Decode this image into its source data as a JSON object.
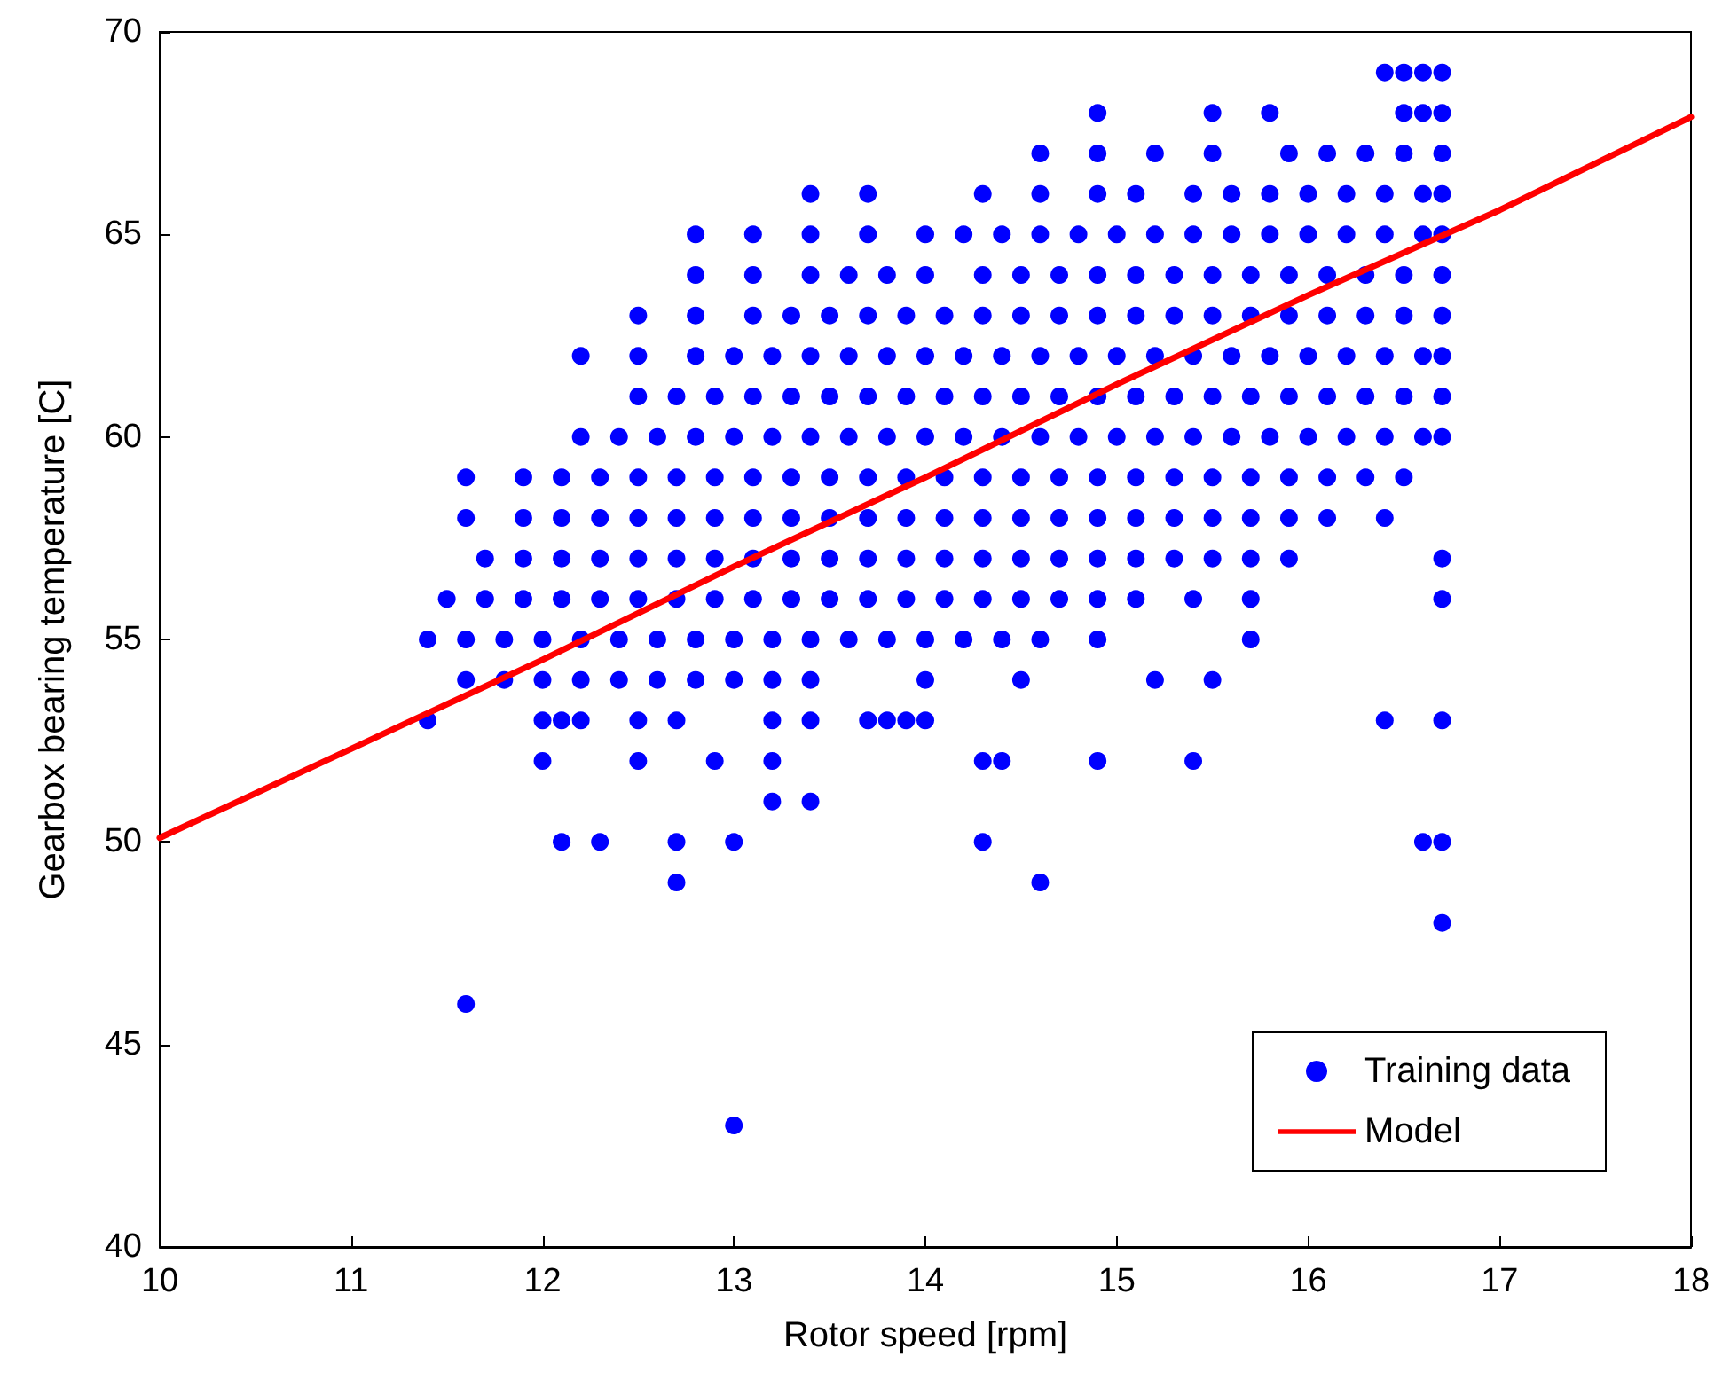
{
  "chart_data": {
    "type": "scatter",
    "xlabel": "Rotor speed [rpm]",
    "ylabel": "Gearbox bearing temperature [C]",
    "xlim": [
      10,
      18
    ],
    "xticks": [
      10,
      11,
      12,
      13,
      14,
      15,
      16,
      17,
      18
    ],
    "ylim": [
      40,
      70
    ],
    "yticks": [
      40,
      45,
      50,
      55,
      60,
      65,
      70
    ],
    "grid": false,
    "legend": "bottom right",
    "marker": "circle",
    "series": [
      {
        "name": "Training data",
        "color": "#0000ff",
        "x": [
          16.4,
          16.5,
          16.6,
          16.7,
          14.9,
          15.5,
          15.8,
          16.5,
          16.6,
          16.7,
          14.6,
          14.9,
          15.2,
          15.5,
          15.9,
          16.1,
          16.3,
          16.5,
          16.7,
          13.4,
          13.7,
          14.3,
          14.6,
          14.9,
          15.1,
          15.4,
          15.6,
          15.8,
          16.0,
          16.2,
          16.4,
          16.6,
          16.7,
          12.8,
          13.1,
          13.4,
          13.7,
          14.0,
          14.2,
          14.4,
          14.6,
          14.8,
          15.0,
          15.2,
          15.4,
          15.6,
          15.8,
          16.0,
          16.2,
          16.4,
          16.6,
          16.7,
          12.8,
          13.1,
          13.4,
          13.6,
          13.8,
          14.0,
          14.3,
          14.5,
          14.7,
          14.9,
          15.1,
          15.3,
          15.5,
          15.7,
          15.9,
          16.1,
          16.3,
          16.5,
          16.7,
          12.5,
          12.8,
          13.1,
          13.3,
          13.5,
          13.7,
          13.9,
          14.1,
          14.3,
          14.5,
          14.7,
          14.9,
          15.1,
          15.3,
          15.5,
          15.7,
          15.9,
          16.1,
          16.3,
          16.5,
          16.7,
          12.2,
          12.5,
          12.8,
          13.0,
          13.2,
          13.4,
          13.6,
          13.8,
          14.0,
          14.2,
          14.4,
          14.6,
          14.8,
          15.0,
          15.2,
          15.4,
          15.6,
          15.8,
          16.0,
          16.2,
          16.4,
          16.6,
          16.7,
          12.5,
          12.7,
          12.9,
          13.1,
          13.3,
          13.5,
          13.7,
          13.9,
          14.1,
          14.3,
          14.5,
          14.7,
          14.9,
          15.1,
          15.3,
          15.5,
          15.7,
          15.9,
          16.1,
          16.3,
          16.5,
          16.7,
          12.2,
          12.4,
          12.6,
          12.8,
          13.0,
          13.2,
          13.4,
          13.6,
          13.8,
          14.0,
          14.2,
          14.4,
          14.6,
          14.8,
          15.0,
          15.2,
          15.4,
          15.6,
          15.8,
          16.0,
          16.2,
          16.4,
          16.6,
          16.7,
          11.6,
          11.9,
          12.1,
          12.3,
          12.5,
          12.7,
          12.9,
          13.1,
          13.3,
          13.5,
          13.7,
          13.9,
          14.1,
          14.3,
          14.5,
          14.7,
          14.9,
          15.1,
          15.3,
          15.5,
          15.7,
          15.9,
          16.1,
          16.3,
          16.5,
          11.6,
          11.9,
          12.1,
          12.3,
          12.5,
          12.7,
          12.9,
          13.1,
          13.3,
          13.5,
          13.7,
          13.9,
          14.1,
          14.3,
          14.5,
          14.7,
          14.9,
          15.1,
          15.3,
          15.5,
          15.7,
          15.9,
          16.1,
          16.4,
          11.7,
          11.9,
          12.1,
          12.3,
          12.5,
          12.7,
          12.9,
          13.1,
          13.3,
          13.5,
          13.7,
          13.9,
          14.1,
          14.3,
          14.5,
          14.7,
          14.9,
          15.1,
          15.3,
          15.5,
          15.7,
          15.9,
          16.7,
          11.5,
          11.7,
          11.9,
          12.1,
          12.3,
          12.5,
          12.7,
          12.9,
          13.1,
          13.3,
          13.5,
          13.7,
          13.9,
          14.1,
          14.3,
          14.5,
          14.7,
          14.9,
          15.1,
          15.4,
          15.7,
          16.7,
          11.4,
          11.6,
          11.8,
          12.0,
          12.2,
          12.4,
          12.6,
          12.8,
          13.0,
          13.2,
          13.4,
          13.6,
          13.8,
          14.0,
          14.2,
          14.4,
          14.6,
          14.9,
          15.7,
          11.6,
          11.8,
          12.0,
          12.2,
          12.4,
          12.6,
          12.8,
          13.0,
          13.2,
          13.4,
          14.0,
          14.5,
          15.2,
          15.5,
          11.4,
          12.0,
          12.1,
          12.2,
          12.5,
          12.7,
          13.2,
          13.4,
          13.7,
          13.8,
          13.9,
          14.0,
          16.4,
          16.7,
          12.0,
          12.5,
          12.9,
          13.2,
          14.3,
          14.4,
          14.9,
          15.4,
          13.2,
          13.4,
          12.1,
          12.3,
          12.7,
          13.0,
          14.3,
          16.6,
          16.7,
          12.7,
          14.6,
          16.7,
          11.6,
          13.0
        ],
        "values": [
          69,
          69,
          69,
          69,
          68,
          68,
          68,
          68,
          68,
          68,
          67,
          67,
          67,
          67,
          67,
          67,
          67,
          67,
          67,
          66,
          66,
          66,
          66,
          66,
          66,
          66,
          66,
          66,
          66,
          66,
          66,
          66,
          66,
          65,
          65,
          65,
          65,
          65,
          65,
          65,
          65,
          65,
          65,
          65,
          65,
          65,
          65,
          65,
          65,
          65,
          65,
          65,
          64,
          64,
          64,
          64,
          64,
          64,
          64,
          64,
          64,
          64,
          64,
          64,
          64,
          64,
          64,
          64,
          64,
          64,
          64,
          63,
          63,
          63,
          63,
          63,
          63,
          63,
          63,
          63,
          63,
          63,
          63,
          63,
          63,
          63,
          63,
          63,
          63,
          63,
          63,
          63,
          62,
          62,
          62,
          62,
          62,
          62,
          62,
          62,
          62,
          62,
          62,
          62,
          62,
          62,
          62,
          62,
          62,
          62,
          62,
          62,
          62,
          62,
          62,
          61,
          61,
          61,
          61,
          61,
          61,
          61,
          61,
          61,
          61,
          61,
          61,
          61,
          61,
          61,
          61,
          61,
          61,
          61,
          61,
          61,
          61,
          60,
          60,
          60,
          60,
          60,
          60,
          60,
          60,
          60,
          60,
          60,
          60,
          60,
          60,
          60,
          60,
          60,
          60,
          60,
          60,
          60,
          60,
          60,
          60,
          59,
          59,
          59,
          59,
          59,
          59,
          59,
          59,
          59,
          59,
          59,
          59,
          59,
          59,
          59,
          59,
          59,
          59,
          59,
          59,
          59,
          59,
          59,
          59,
          59,
          58,
          58,
          58,
          58,
          58,
          58,
          58,
          58,
          58,
          58,
          58,
          58,
          58,
          58,
          58,
          58,
          58,
          58,
          58,
          58,
          58,
          58,
          58,
          58,
          57,
          57,
          57,
          57,
          57,
          57,
          57,
          57,
          57,
          57,
          57,
          57,
          57,
          57,
          57,
          57,
          57,
          57,
          57,
          57,
          57,
          57,
          57,
          56,
          56,
          56,
          56,
          56,
          56,
          56,
          56,
          56,
          56,
          56,
          56,
          56,
          56,
          56,
          56,
          56,
          56,
          56,
          56,
          56,
          56,
          55,
          55,
          55,
          55,
          55,
          55,
          55,
          55,
          55,
          55,
          55,
          55,
          55,
          55,
          55,
          55,
          55,
          55,
          55,
          54,
          54,
          54,
          54,
          54,
          54,
          54,
          54,
          54,
          54,
          54,
          54,
          54,
          54,
          53,
          53,
          53,
          53,
          53,
          53,
          53,
          53,
          53,
          53,
          53,
          53,
          53,
          53,
          52,
          52,
          52,
          52,
          52,
          52,
          52,
          52,
          51,
          51,
          50,
          50,
          50,
          50,
          50,
          50,
          50,
          49,
          49,
          48,
          46,
          43
        ]
      },
      {
        "name": "Model",
        "type": "line",
        "color": "#ff0000",
        "marker": "none",
        "line_style": "solid",
        "x": [
          10,
          11,
          12,
          13,
          14,
          15,
          16,
          17,
          18
        ],
        "values": [
          50.1,
          52.3,
          54.5,
          56.8,
          59.0,
          61.3,
          63.5,
          65.6,
          67.9
        ]
      }
    ]
  }
}
